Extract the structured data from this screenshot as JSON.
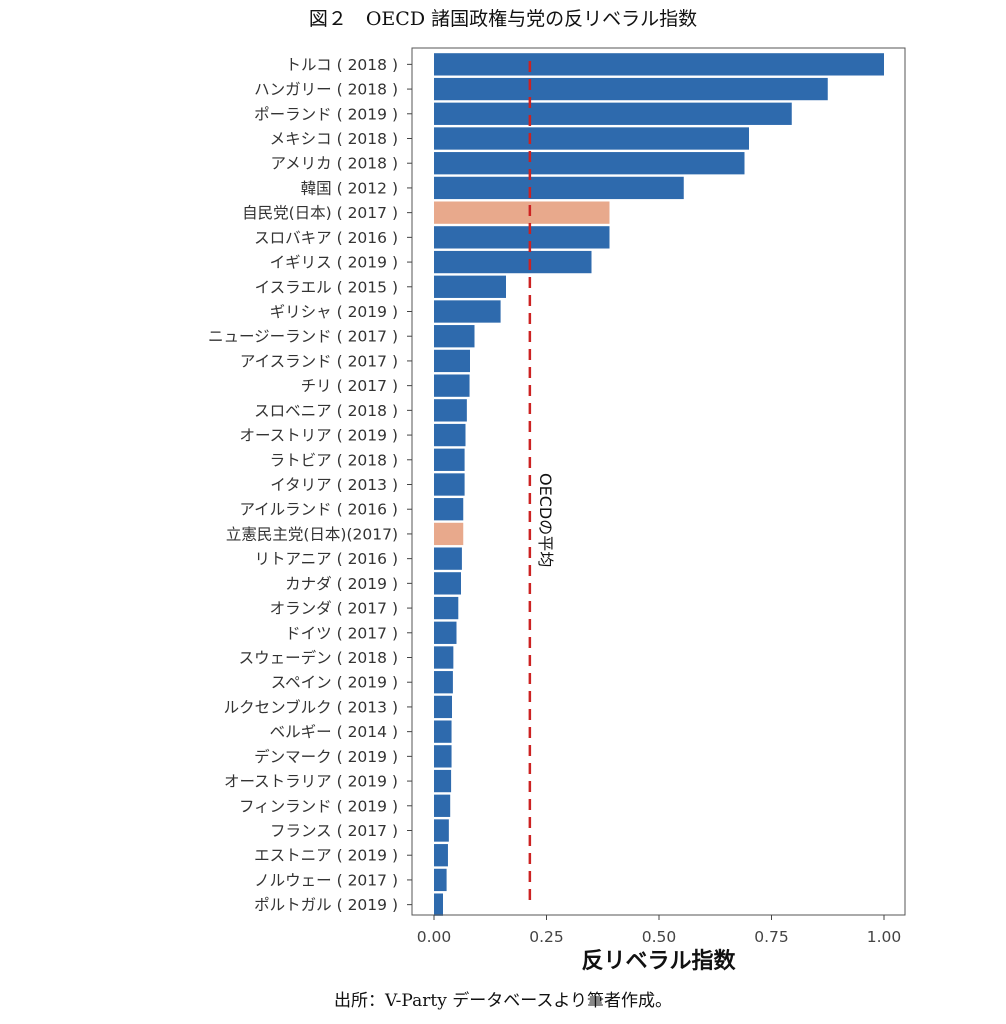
{
  "page": {
    "title": "図２　OECD 諸国政権与党の反リベラル指数",
    "source": "出所：V-Party データベースより筆者作成。"
  },
  "chart_data": {
    "type": "bar",
    "orientation": "horizontal",
    "xlabel": "反リベラル指数",
    "ylabel": "",
    "xlim": [
      0,
      1.05
    ],
    "xticks": [
      0.0,
      0.25,
      0.5,
      0.75,
      1.0
    ],
    "xtick_labels": [
      "0.00",
      "0.25",
      "0.50",
      "0.75",
      "1.00"
    ],
    "grid": false,
    "colors": {
      "default": "#2e6aad",
      "highlight": "#e8a98c",
      "reference": "#cc2222"
    },
    "categories": [
      "トルコ ( 2018 )",
      "ハンガリー ( 2018 )",
      "ポーランド ( 2019 )",
      "メキシコ ( 2018 )",
      "アメリカ ( 2018 )",
      "韓国 ( 2012 )",
      "自民党(日本) ( 2017 )",
      "スロバキア ( 2016 )",
      "イギリス ( 2019 )",
      "イスラエル ( 2015 )",
      "ギリシャ ( 2019 )",
      "ニュージーランド ( 2017 )",
      "アイスランド ( 2017 )",
      "チリ ( 2017 )",
      "スロベニア ( 2018 )",
      "オーストリア ( 2019 )",
      "ラトビア ( 2018 )",
      "イタリア ( 2013 )",
      "アイルランド ( 2016 )",
      "立憲民主党(日本)(2017)",
      "リトアニア ( 2016 )",
      "カナダ ( 2019 )",
      "オランダ ( 2017 )",
      "ドイツ ( 2017 )",
      "スウェーデン ( 2018 )",
      "スペイン ( 2019 )",
      "ルクセンブルク ( 2013 )",
      "ベルギー ( 2014 )",
      "デンマーク ( 2019 )",
      "オーストラリア ( 2019 )",
      "フィンランド ( 2019 )",
      "フランス ( 2017 )",
      "エストニア ( 2019 )",
      "ノルウェー ( 2017 )",
      "ポルトガル ( 2019 )"
    ],
    "values": [
      1.0,
      0.875,
      0.795,
      0.7,
      0.69,
      0.555,
      0.39,
      0.39,
      0.35,
      0.16,
      0.148,
      0.09,
      0.08,
      0.079,
      0.073,
      0.07,
      0.068,
      0.068,
      0.065,
      0.065,
      0.062,
      0.06,
      0.054,
      0.05,
      0.043,
      0.042,
      0.04,
      0.039,
      0.039,
      0.038,
      0.036,
      0.033,
      0.031,
      0.028,
      0.02
    ],
    "highlighted": [
      6,
      19
    ],
    "reference_line": {
      "value": 0.213,
      "label": "OECDの平均",
      "style": "dashed"
    }
  }
}
